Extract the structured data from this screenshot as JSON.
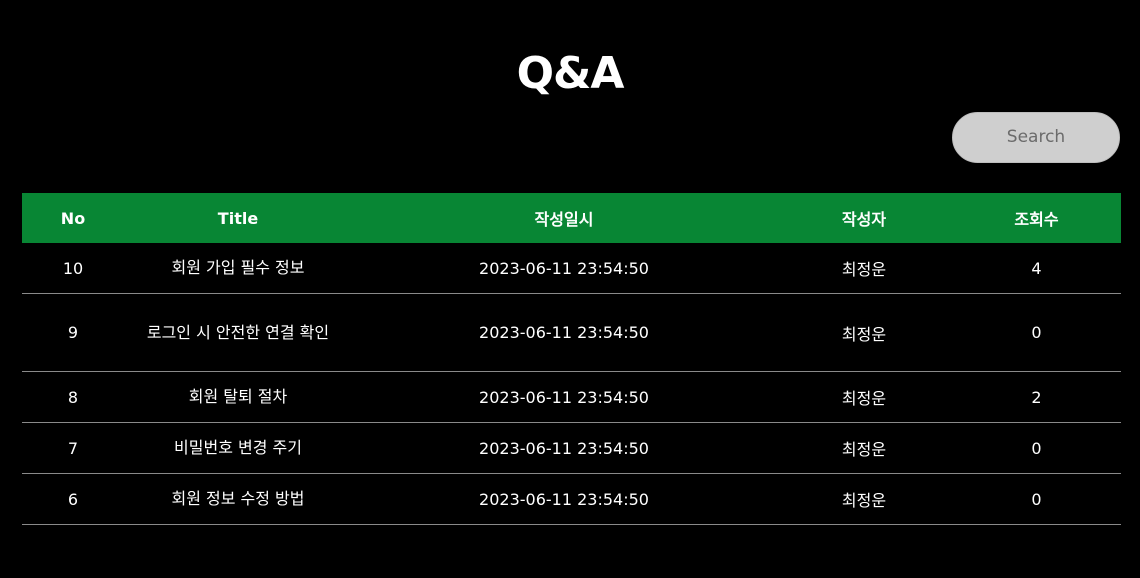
{
  "page": {
    "title": "Q&A"
  },
  "search": {
    "label": "Search"
  },
  "table": {
    "headers": {
      "no": "No",
      "title": "Title",
      "date": "작성일시",
      "author": "작성자",
      "views": "조회수"
    },
    "rows": [
      {
        "no": "10",
        "title": "회원 가입 필수 정보",
        "date": "2023-06-11 23:54:50",
        "author": "최정운",
        "views": "4"
      },
      {
        "no": "9",
        "title": "로그인 시 안전한 연결 확인",
        "date": "2023-06-11 23:54:50",
        "author": "최정운",
        "views": "0"
      },
      {
        "no": "8",
        "title": "회원 탈퇴 절차",
        "date": "2023-06-11 23:54:50",
        "author": "최정운",
        "views": "2"
      },
      {
        "no": "7",
        "title": "비밀번호 변경 주기",
        "date": "2023-06-11 23:54:50",
        "author": "최정운",
        "views": "0"
      },
      {
        "no": "6",
        "title": "회원 정보 수정 방법",
        "date": "2023-06-11 23:54:50",
        "author": "최정운",
        "views": "0"
      }
    ]
  },
  "colors": {
    "background": "#000000",
    "header_green": "#088634",
    "search_bg": "#cfcfcf",
    "row_divider": "#8a8a8a"
  }
}
